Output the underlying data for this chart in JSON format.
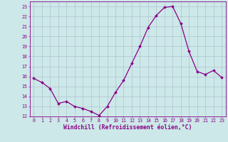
{
  "x": [
    0,
    1,
    2,
    3,
    4,
    5,
    6,
    7,
    8,
    9,
    10,
    11,
    12,
    13,
    14,
    15,
    16,
    17,
    18,
    19,
    20,
    21,
    22,
    23
  ],
  "y": [
    15.8,
    15.4,
    14.8,
    13.3,
    13.5,
    13.0,
    12.8,
    12.5,
    12.1,
    13.0,
    14.4,
    15.6,
    17.3,
    19.0,
    20.9,
    22.1,
    22.9,
    23.0,
    21.3,
    18.5,
    16.5,
    16.2,
    16.6,
    15.9
  ],
  "line_color": "#880088",
  "marker": "D",
  "marker_size": 2.0,
  "linewidth": 0.9,
  "bg_color": "#cce8e8",
  "grid_color": "#aabbcc",
  "xlabel": "Windchill (Refroidissement éolien,°C)",
  "ylim": [
    12,
    23.5
  ],
  "yticks": [
    12,
    13,
    14,
    15,
    16,
    17,
    18,
    19,
    20,
    21,
    22,
    23
  ],
  "xticks": [
    0,
    1,
    2,
    3,
    4,
    5,
    6,
    7,
    8,
    9,
    10,
    11,
    12,
    13,
    14,
    15,
    16,
    17,
    18,
    19,
    20,
    21,
    22,
    23
  ],
  "tick_color": "#880088",
  "tick_fontsize": 4.8,
  "xlabel_fontsize": 5.8,
  "spine_color": "#880088"
}
